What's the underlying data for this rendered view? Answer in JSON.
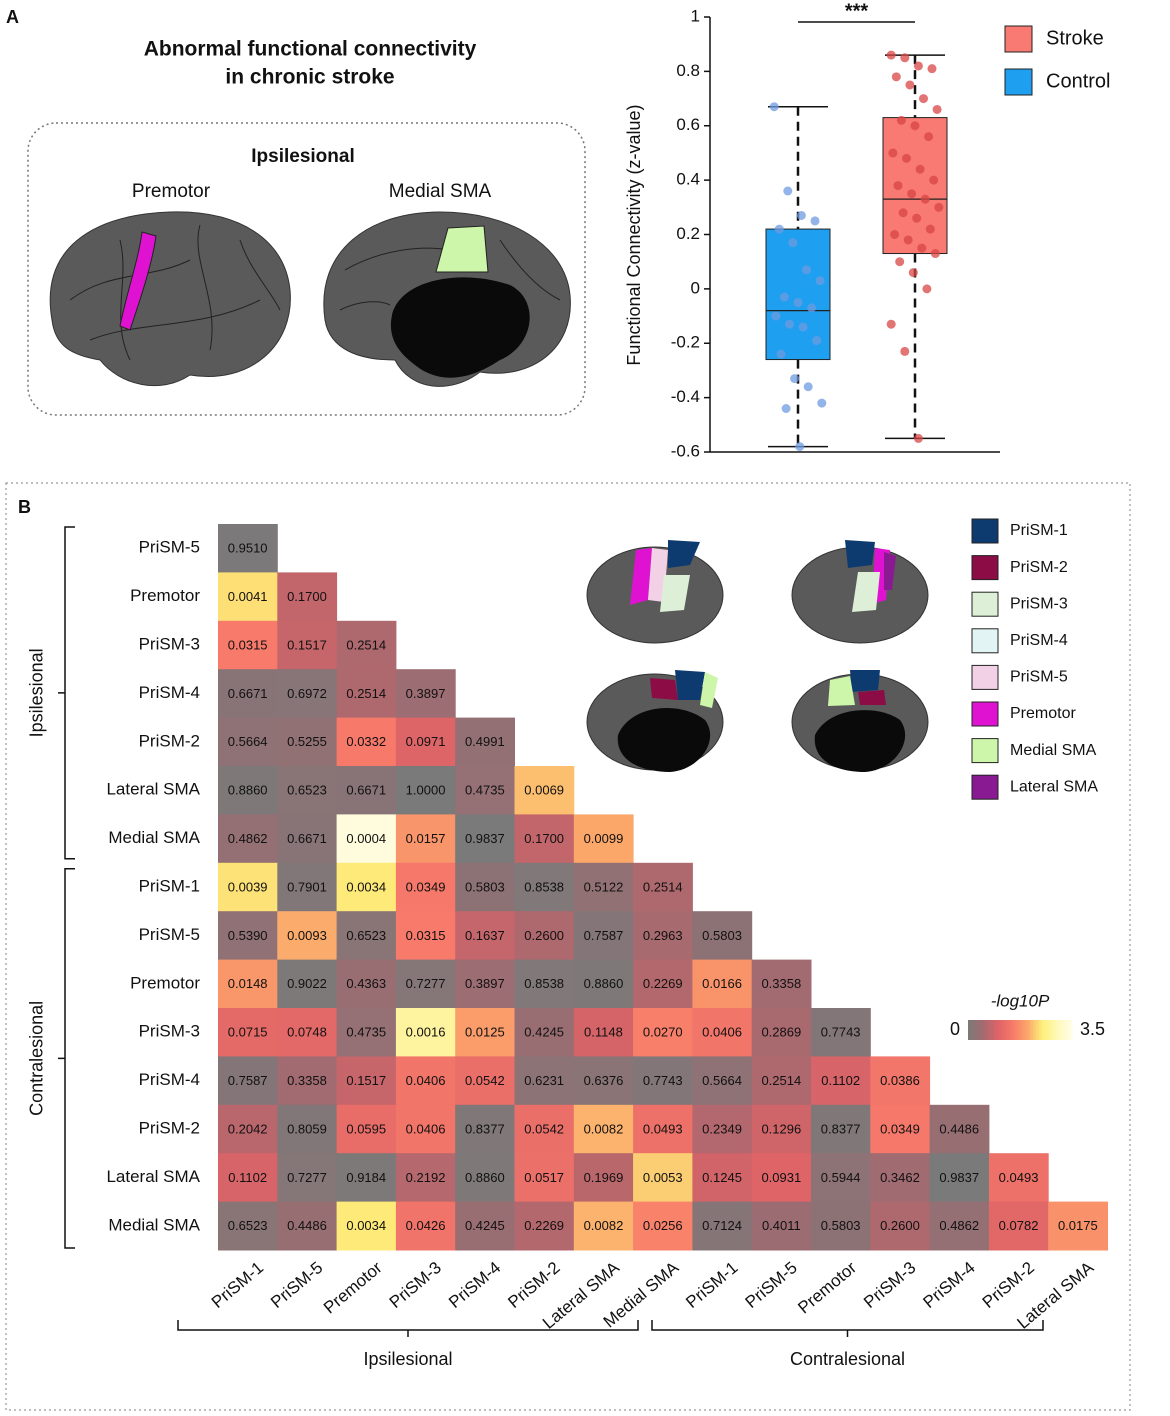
{
  "panel_a": {
    "label": "A",
    "title": [
      "Abnormal functional connectivity",
      "in chronic stroke"
    ],
    "inset": {
      "heading": "Ipsilesional",
      "regions": [
        "Premotor",
        "Medial SMA"
      ]
    }
  },
  "panel_b": {
    "label": "B",
    "legend": [
      {
        "name": "PriSM-1",
        "color": "#0d3b70"
      },
      {
        "name": "PriSM-2",
        "color": "#8c0c46"
      },
      {
        "name": "PriSM-3",
        "color": "#ddefd6"
      },
      {
        "name": "PriSM-4",
        "color": "#e2f4f3"
      },
      {
        "name": "PriSM-5",
        "color": "#f2d0e6"
      },
      {
        "name": "Premotor",
        "color": "#e012d2"
      },
      {
        "name": "Medial SMA",
        "color": "#cdf6aa"
      },
      {
        "name": "Lateral SMA",
        "color": "#8a1a92"
      }
    ]
  },
  "chart_data": [
    {
      "type": "box",
      "ylabel": "Functional Connectivity (z-value)",
      "ylim": [
        -0.6,
        1
      ],
      "yticks": [
        -0.6,
        -0.4,
        -0.2,
        0,
        0.2,
        0.4,
        0.6,
        0.8,
        1
      ],
      "annotation": "***",
      "legend_position": "upper right",
      "series": [
        {
          "name": "Stroke",
          "color": "#f87a72",
          "point_color": "#d84545",
          "stats": {
            "min": -0.55,
            "q1": 0.13,
            "median": 0.33,
            "q3": 0.63,
            "max": 0.86
          },
          "points": [
            0.86,
            0.85,
            0.82,
            0.81,
            0.78,
            0.75,
            0.7,
            0.66,
            0.62,
            0.6,
            0.56,
            0.5,
            0.48,
            0.44,
            0.4,
            0.38,
            0.35,
            0.33,
            0.3,
            0.28,
            0.26,
            0.22,
            0.2,
            0.18,
            0.15,
            0.13,
            0.1,
            0.06,
            0.0,
            -0.13,
            -0.23,
            -0.55
          ]
        },
        {
          "name": "Control",
          "color": "#1e9ff0",
          "point_color": "#6f9be0",
          "stats": {
            "min": -0.58,
            "q1": -0.26,
            "median": -0.08,
            "q3": 0.22,
            "max": 0.67
          },
          "points": [
            0.67,
            0.36,
            0.27,
            0.25,
            0.22,
            0.17,
            0.07,
            0.03,
            -0.03,
            -0.05,
            -0.07,
            -0.1,
            -0.13,
            -0.14,
            -0.19,
            -0.24,
            -0.33,
            -0.36,
            -0.42,
            -0.44,
            -0.58
          ]
        }
      ]
    },
    {
      "type": "heatmap",
      "row_labels": [
        "PriSM-5",
        "Premotor",
        "PriSM-3",
        "PriSM-4",
        "PriSM-2",
        "Lateral SMA",
        "Medial SMA",
        "PriSM-1",
        "PriSM-5",
        "Premotor",
        "PriSM-3",
        "PriSM-4",
        "PriSM-2",
        "Lateral SMA",
        "Medial SMA"
      ],
      "col_labels": [
        "PriSM-1",
        "PriSM-5",
        "Premotor",
        "PriSM-3",
        "PriSM-4",
        "PriSM-2",
        "Lateral SMA",
        "Medial SMA",
        "PriSM-1",
        "PriSM-5",
        "Premotor",
        "PriSM-3",
        "PriSM-4",
        "PriSM-2",
        "Lateral SMA"
      ],
      "row_groups": [
        "Ipsilesional",
        "Contralesional"
      ],
      "col_groups": [
        "Ipsilesional",
        "Contralesional"
      ],
      "values": [
        [
          0.951
        ],
        [
          0.0041,
          0.17
        ],
        [
          0.0315,
          0.1517,
          0.2514
        ],
        [
          0.6671,
          0.6972,
          0.2514,
          0.3897
        ],
        [
          0.5664,
          0.5255,
          0.0332,
          0.0971,
          0.4991
        ],
        [
          0.886,
          0.6523,
          0.6671,
          1,
          0.4735,
          0.0069
        ],
        [
          0.4862,
          0.6671,
          0.0004,
          0.0157,
          0.9837,
          0.17,
          0.0099
        ],
        [
          0.0039,
          0.7901,
          0.0034,
          0.0349,
          0.5803,
          0.8538,
          0.5122,
          0.2514
        ],
        [
          0.539,
          0.0093,
          0.6523,
          0.0315,
          0.1637,
          0.26,
          0.7587,
          0.2963,
          0.5803
        ],
        [
          0.0148,
          0.9022,
          0.4363,
          0.7277,
          0.3897,
          0.8538,
          0.886,
          0.2269,
          0.0166,
          0.3358
        ],
        [
          0.0715,
          0.0748,
          0.4735,
          0.0016,
          0.0125,
          0.4245,
          0.1148,
          0.027,
          0.0406,
          0.2869,
          0.7743
        ],
        [
          0.7587,
          0.3358,
          0.1517,
          0.0406,
          0.0542,
          0.6231,
          0.6376,
          0.7743,
          0.5664,
          0.2514,
          0.1102,
          0.0386
        ],
        [
          0.2042,
          0.8059,
          0.0595,
          0.0406,
          0.8377,
          0.0542,
          0.0082,
          0.0493,
          0.2349,
          0.1296,
          0.8377,
          0.0349,
          0.4486
        ],
        [
          0.1102,
          0.7277,
          0.9184,
          0.2192,
          0.886,
          0.0517,
          0.1969,
          0.0053,
          0.1245,
          0.0931,
          0.5944,
          0.3462,
          0.9837,
          0.0493
        ],
        [
          0.6523,
          0.4486,
          0.0034,
          0.0426,
          0.4245,
          0.2269,
          0.0082,
          0.0256,
          0.7124,
          0.4011,
          0.5803,
          0.26,
          0.4862,
          0.0782,
          0.0175
        ]
      ],
      "value_labels": [
        [
          "0.9510"
        ],
        [
          "0.0041",
          "0.1700"
        ],
        [
          "0.0315",
          "0.1517",
          "0.2514"
        ],
        [
          "0.6671",
          "0.6972",
          "0.2514",
          "0.3897"
        ],
        [
          "0.5664",
          "0.5255",
          "0.0332",
          "0.0971",
          "0.4991"
        ],
        [
          "0.8860",
          "0.6523",
          "0.6671",
          "1.0000",
          "0.4735",
          "0.0069"
        ],
        [
          "0.4862",
          "0.6671",
          "0.0004",
          "0.0157",
          "0.9837",
          "0.1700",
          "0.0099"
        ],
        [
          "0.0039",
          "0.7901",
          "0.0034",
          "0.0349",
          "0.5803",
          "0.8538",
          "0.5122",
          "0.2514"
        ],
        [
          "0.5390",
          "0.0093",
          "0.6523",
          "0.0315",
          "0.1637",
          "0.2600",
          "0.7587",
          "0.2963",
          "0.5803"
        ],
        [
          "0.0148",
          "0.9022",
          "0.4363",
          "0.7277",
          "0.3897",
          "0.8538",
          "0.8860",
          "0.2269",
          "0.0166",
          "0.3358"
        ],
        [
          "0.0715",
          "0.0748",
          "0.4735",
          "0.0016",
          "0.0125",
          "0.4245",
          "0.1148",
          "0.0270",
          "0.0406",
          "0.2869",
          "0.7743"
        ],
        [
          "0.7587",
          "0.3358",
          "0.1517",
          "0.0406",
          "0.0542",
          "0.6231",
          "0.6376",
          "0.7743",
          "0.5664",
          "0.2514",
          "0.1102",
          "0.0386"
        ],
        [
          "0.2042",
          "0.8059",
          "0.0595",
          "0.0406",
          "0.8377",
          "0.0542",
          "0.0082",
          "0.0493",
          "0.2349",
          "0.1296",
          "0.8377",
          "0.0349",
          "0.4486"
        ],
        [
          "0.1102",
          "0.7277",
          "0.9184",
          "0.2192",
          "0.8860",
          "0.0517",
          "0.1969",
          "0.0053",
          "0.1245",
          "0.0931",
          "0.5944",
          "0.3462",
          "0.9837",
          "0.0493"
        ],
        [
          "0.6523",
          "0.4486",
          "0.0034",
          "0.0426",
          "0.4245",
          "0.2269",
          "0.0082",
          "0.0256",
          "0.7124",
          "0.4011",
          "0.5803",
          "0.2600",
          "0.4862",
          "0.0782",
          "0.0175"
        ]
      ],
      "colorbar": {
        "label": "-log10P",
        "lim": [
          0,
          3.5
        ],
        "ticks": [
          0,
          3.5
        ],
        "colors": [
          "#7a7a7a",
          "#a36a70",
          "#dc6367",
          "#f77a6a",
          "#fba66a",
          "#fdef7a",
          "#fff8b8",
          "#fffde8"
        ]
      }
    }
  ]
}
